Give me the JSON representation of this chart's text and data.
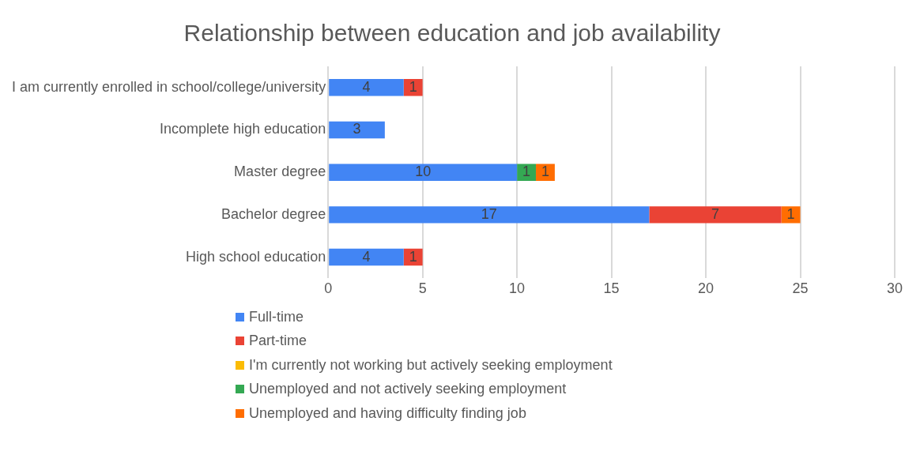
{
  "chart_data": {
    "type": "bar",
    "orientation": "horizontal",
    "stacked": true,
    "title": "Relationship between education and job availability",
    "categories": [
      "I am currently enrolled in school/college/university",
      "Incomplete high education",
      "Master degree",
      "Bachelor degree",
      "High school education"
    ],
    "series": [
      {
        "name": "Full-time",
        "color": "#4285f4",
        "values": [
          4,
          3,
          10,
          17,
          4
        ]
      },
      {
        "name": "Part-time",
        "color": "#ea4335",
        "values": [
          1,
          null,
          null,
          7,
          1
        ]
      },
      {
        "name": "I'm currently not working but actively seeking employment",
        "color": "#fbbc04",
        "values": [
          null,
          null,
          null,
          null,
          null
        ]
      },
      {
        "name": "Unemployed and not actively seeking employment",
        "color": "#34a853",
        "values": [
          null,
          null,
          1,
          null,
          null
        ]
      },
      {
        "name": "Unemployed and having difficulty finding job",
        "color": "#ff6d01",
        "values": [
          null,
          null,
          1,
          1,
          null
        ]
      }
    ],
    "xlim": [
      0,
      30
    ],
    "xticks": [
      0,
      5,
      10,
      15,
      20,
      25,
      30
    ],
    "grid": "x",
    "legend": "bottom",
    "data_labels": true
  }
}
